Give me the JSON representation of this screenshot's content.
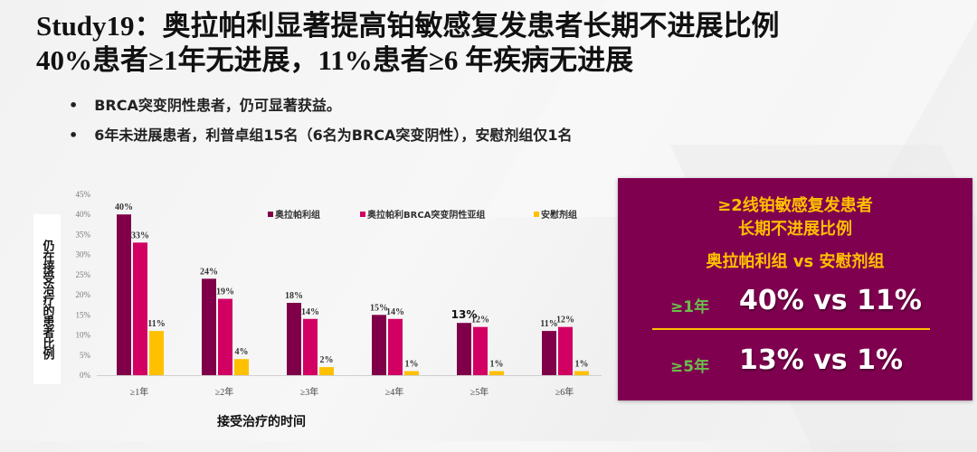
{
  "title": {
    "line1": "Study19：奥拉帕利显著提高铂敏感复发患者长期不进展比例",
    "line2": "40%患者≥1年无进展，11%患者≥6 年疾病无进展"
  },
  "bullets": [
    "BRCA突变阴性患者，仍可显著获益。",
    "6年未进展患者，利普卓组15名（6名为BRCA突变阴性），安慰剂组仅1名"
  ],
  "bullet_symbol": "•",
  "chart_data": {
    "type": "bar",
    "categories": [
      "≥1年",
      "≥2年",
      "≥3年",
      "≥4年",
      "≥5年",
      "≥6年"
    ],
    "series": [
      {
        "name": "奥拉帕利组",
        "color": "#7f0048",
        "values": [
          40,
          24,
          18,
          15,
          13,
          11
        ],
        "labels": [
          "40%",
          "24%",
          "18%",
          "15%",
          "13%",
          "11%"
        ]
      },
      {
        "name": "奥拉帕利BRCA突变阴性亚组",
        "color": "#d20063",
        "values": [
          33,
          19,
          14,
          14,
          12,
          12
        ],
        "labels": [
          "33%",
          "19%",
          "14%",
          "14%",
          "12%",
          "12%"
        ]
      },
      {
        "name": "安慰剂组",
        "color": "#ffc000",
        "values": [
          11,
          4,
          2,
          1,
          1,
          1
        ],
        "labels": [
          "11%",
          "4%",
          "2%",
          "1%",
          "1%",
          "1%"
        ]
      }
    ],
    "ylabel": "仍在接受治疗的患者比例",
    "xlabel": "接受治疗的时间",
    "ylim": [
      0,
      45
    ],
    "yticks": [
      "0%",
      "5%",
      "10%",
      "15%",
      "20%",
      "25%",
      "30%",
      "35%",
      "40%",
      "45%"
    ],
    "grid": false,
    "legend": "top-right"
  },
  "panel": {
    "heading1": "≥2线铂敏感复发患者",
    "heading2": "长期不进展比例",
    "heading3": "奥拉帕利组 vs 安慰剂组",
    "rows": [
      {
        "label": "≥1年",
        "value": "40% vs 11%"
      },
      {
        "label": "≥5年",
        "value": "13% vs 1%"
      }
    ],
    "colors": {
      "background": "#800050",
      "heading": "#ffc000",
      "label": "#6abf4b",
      "value": "#ffffff"
    }
  }
}
